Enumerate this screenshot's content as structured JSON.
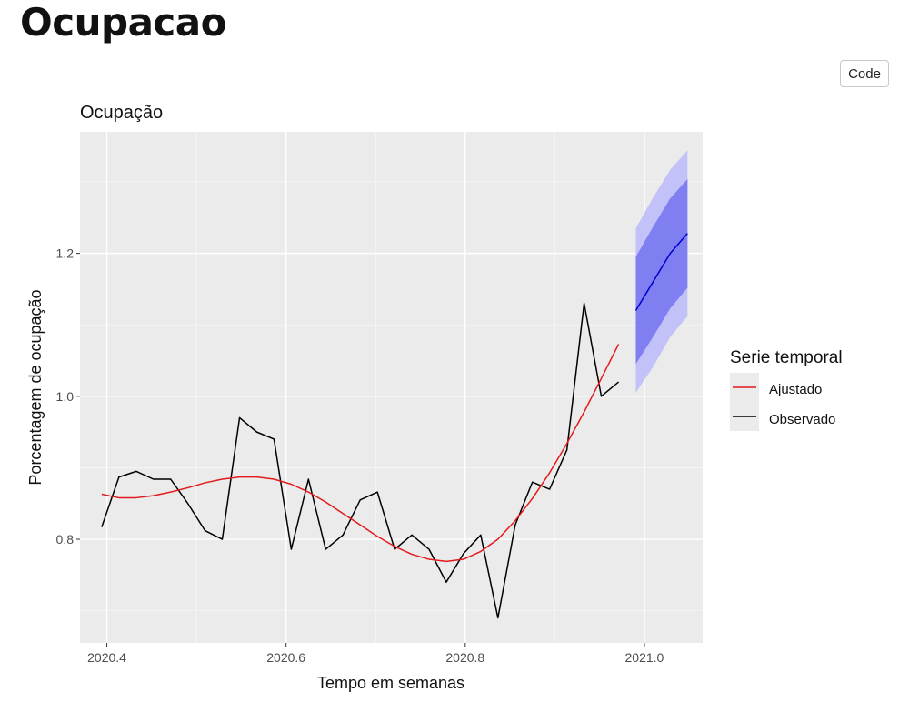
{
  "page": {
    "title": "Ocupacao"
  },
  "toolbar": {
    "code_label": "Code"
  },
  "chart_data": {
    "type": "line",
    "title": "Ocupação",
    "xlabel": "Tempo em semanas",
    "ylabel": "Porcentagem de ocupação",
    "xlim": [
      2020.37,
      2021.065
    ],
    "ylim": [
      0.655,
      1.37
    ],
    "xticks": [
      {
        "value": 2020.4,
        "label": "2020.4"
      },
      {
        "value": 2020.6,
        "label": "2020.6"
      },
      {
        "value": 2020.8,
        "label": "2020.8"
      },
      {
        "value": 2021.0,
        "label": "2021.0"
      }
    ],
    "yticks": [
      {
        "value": 0.8,
        "label": "0.8"
      },
      {
        "value": 1.0,
        "label": "1.0"
      },
      {
        "value": 1.2,
        "label": "1.2"
      }
    ],
    "grid": true,
    "legend": {
      "title": "Serie temporal",
      "position": "right",
      "entries": [
        {
          "name": "Ajustado",
          "color": "#e31a1c"
        },
        {
          "name": "Observado",
          "color": "#000000"
        }
      ]
    },
    "series": [
      {
        "name": "Observado",
        "color": "#000000",
        "x": [
          2020.3942,
          2020.4135,
          2020.4327,
          2020.4519,
          2020.4712,
          2020.4904,
          2020.5096,
          2020.5288,
          2020.5481,
          2020.5673,
          2020.5865,
          2020.6058,
          2020.625,
          2020.6442,
          2020.6635,
          2020.6827,
          2020.7019,
          2020.7212,
          2020.7404,
          2020.7596,
          2020.7788,
          2020.7981,
          2020.8173,
          2020.8365,
          2020.8558,
          2020.875,
          2020.8942,
          2020.9135,
          2020.9327,
          2020.9519,
          2020.9712
        ],
        "values": [
          0.817,
          0.887,
          0.895,
          0.884,
          0.884,
          0.85,
          0.812,
          0.8,
          0.97,
          0.95,
          0.94,
          0.786,
          0.884,
          0.786,
          0.806,
          0.855,
          0.866,
          0.786,
          0.806,
          0.786,
          0.74,
          0.78,
          0.806,
          0.69,
          0.82,
          0.88,
          0.87,
          0.925,
          1.13,
          1.0,
          1.02
        ]
      },
      {
        "name": "Ajustado",
        "color": "#e31a1c",
        "x": [
          2020.3942,
          2020.4135,
          2020.4327,
          2020.4519,
          2020.4712,
          2020.4904,
          2020.5096,
          2020.5288,
          2020.5481,
          2020.5673,
          2020.5865,
          2020.6058,
          2020.625,
          2020.6442,
          2020.6635,
          2020.6827,
          2020.7019,
          2020.7212,
          2020.7404,
          2020.7596,
          2020.7788,
          2020.7981,
          2020.8173,
          2020.8365,
          2020.8558,
          2020.875,
          2020.8942,
          2020.9135,
          2020.9327,
          2020.9519,
          2020.9712
        ],
        "values": [
          0.863,
          0.858,
          0.858,
          0.861,
          0.866,
          0.872,
          0.879,
          0.884,
          0.887,
          0.887,
          0.884,
          0.877,
          0.866,
          0.852,
          0.836,
          0.82,
          0.804,
          0.79,
          0.779,
          0.772,
          0.769,
          0.772,
          0.783,
          0.8,
          0.826,
          0.857,
          0.893,
          0.934,
          0.978,
          1.025,
          1.073
        ]
      },
      {
        "name": "Previsão",
        "color": "#0000cc",
        "x": [
          2020.9904,
          2021.0096,
          2021.0288,
          2021.0481
        ],
        "values": [
          1.12,
          1.16,
          1.2,
          1.228
        ],
        "lo80": [
          1.045,
          1.083,
          1.123,
          1.152
        ],
        "hi80": [
          1.195,
          1.237,
          1.277,
          1.304
        ],
        "lo95": [
          1.005,
          1.041,
          1.083,
          1.112
        ],
        "hi95": [
          1.235,
          1.278,
          1.317,
          1.344
        ]
      }
    ]
  }
}
